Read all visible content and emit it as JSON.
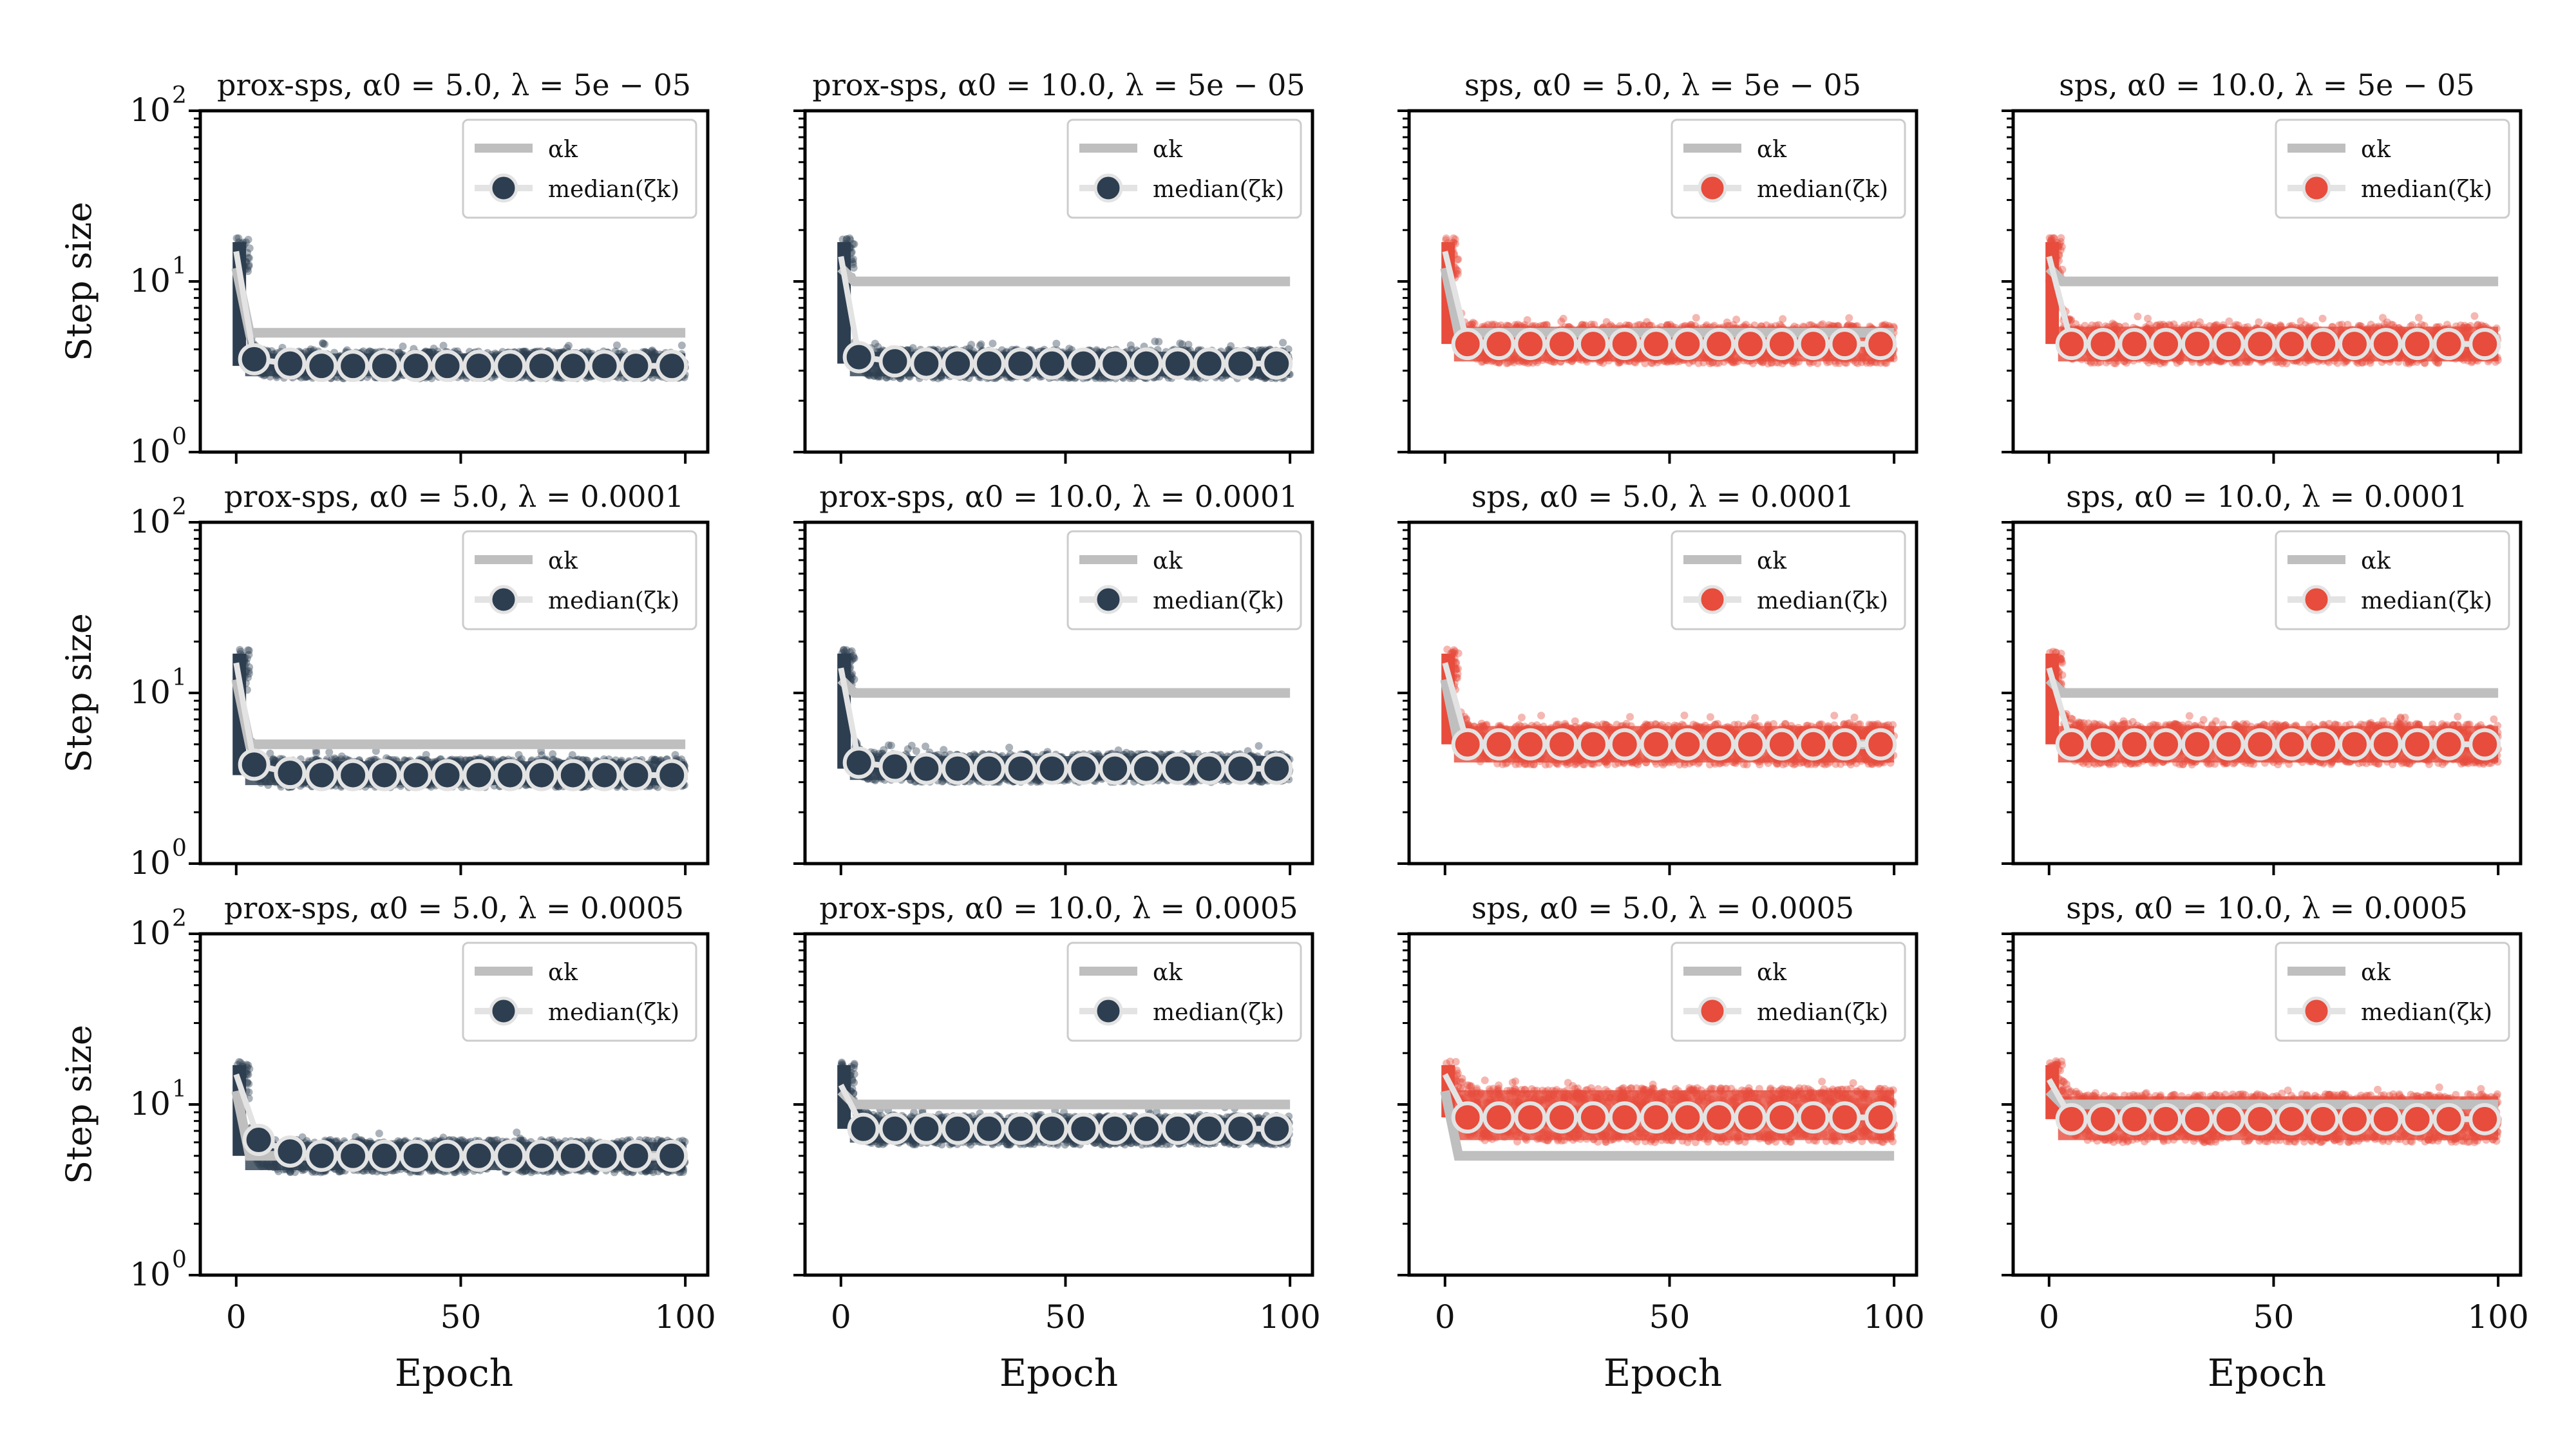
{
  "figure": {
    "ylabel": "Step size",
    "xlabel": "Epoch"
  },
  "colors": {
    "prox_sps": "#2d3e50",
    "sps": "#e74c3c",
    "alpha_line": "#bfbfbf",
    "median_line": "#e3e3e3",
    "frame": "#000000"
  },
  "legend": {
    "alpha_label": "αk",
    "median_label": "median(ζk)"
  },
  "axes": {
    "y_scale": "log",
    "ylim": [
      1,
      100
    ],
    "yticks": [
      {
        "value": 1,
        "base": "10",
        "exp": "0"
      },
      {
        "value": 10,
        "base": "10",
        "exp": "1"
      },
      {
        "value": 100,
        "base": "10",
        "exp": "2"
      }
    ],
    "xlim": [
      -8,
      105
    ],
    "xticks": [
      0,
      50,
      100
    ],
    "legend_position": "upper right"
  },
  "chart_data": [
    {
      "type": "scatter",
      "method": "prox-sps",
      "title": "prox-sps, α0 = 5.0, λ = 5e − 05",
      "alpha0": 5.0,
      "lambda": "5e-05",
      "series": [
        {
          "name": "αk",
          "x": [
            0,
            3,
            100
          ],
          "y": [
            12,
            5,
            5
          ]
        },
        {
          "name": "median(ζk)",
          "x": [
            0,
            4,
            12,
            19,
            26,
            33,
            40,
            47,
            54,
            61,
            68,
            75,
            82,
            89,
            97
          ],
          "y": [
            15,
            3.5,
            3.3,
            3.2,
            3.2,
            3.2,
            3.2,
            3.2,
            3.2,
            3.2,
            3.2,
            3.2,
            3.2,
            3.2,
            3.2
          ],
          "band_low": 2.7,
          "band_high": 3.9
        }
      ]
    },
    {
      "type": "scatter",
      "method": "prox-sps",
      "title": "prox-sps, α0 = 10.0, λ = 5e − 05",
      "alpha0": 10.0,
      "lambda": "5e-05",
      "series": [
        {
          "name": "αk",
          "x": [
            0,
            3,
            100
          ],
          "y": [
            12,
            10,
            10
          ]
        },
        {
          "name": "median(ζk)",
          "x": [
            0,
            4,
            12,
            19,
            26,
            33,
            40,
            47,
            54,
            61,
            68,
            75,
            82,
            89,
            97
          ],
          "y": [
            14,
            3.6,
            3.4,
            3.3,
            3.3,
            3.3,
            3.3,
            3.3,
            3.3,
            3.3,
            3.3,
            3.3,
            3.3,
            3.3,
            3.3
          ],
          "band_low": 2.7,
          "band_high": 4.0
        }
      ]
    },
    {
      "type": "scatter",
      "method": "sps",
      "title": "sps, α0 = 5.0, λ = 5e − 05",
      "alpha0": 5.0,
      "lambda": "5e-05",
      "series": [
        {
          "name": "αk",
          "x": [
            0,
            3,
            100
          ],
          "y": [
            12,
            5,
            5
          ]
        },
        {
          "name": "median(ζk)",
          "x": [
            0,
            5,
            12,
            19,
            26,
            33,
            40,
            47,
            54,
            61,
            68,
            75,
            82,
            89,
            97
          ],
          "y": [
            15,
            4.3,
            4.3,
            4.3,
            4.3,
            4.3,
            4.3,
            4.3,
            4.3,
            4.3,
            4.3,
            4.3,
            4.3,
            4.3,
            4.3
          ],
          "band_low": 3.3,
          "band_high": 5.6
        }
      ]
    },
    {
      "type": "scatter",
      "method": "sps",
      "title": "sps, α0 = 10.0, λ = 5e − 05",
      "alpha0": 10.0,
      "lambda": "5e-05",
      "series": [
        {
          "name": "αk",
          "x": [
            0,
            3,
            100
          ],
          "y": [
            12,
            10,
            10
          ]
        },
        {
          "name": "median(ζk)",
          "x": [
            0,
            5,
            12,
            19,
            26,
            33,
            40,
            47,
            54,
            61,
            68,
            75,
            82,
            89,
            97
          ],
          "y": [
            14,
            4.3,
            4.3,
            4.3,
            4.3,
            4.3,
            4.3,
            4.3,
            4.3,
            4.3,
            4.3,
            4.3,
            4.3,
            4.3,
            4.3
          ],
          "band_low": 3.3,
          "band_high": 5.6
        }
      ]
    },
    {
      "type": "scatter",
      "method": "prox-sps",
      "title": "prox-sps, α0 = 5.0, λ = 0.0001",
      "alpha0": 5.0,
      "lambda": "0.0001",
      "series": [
        {
          "name": "αk",
          "x": [
            0,
            3,
            100
          ],
          "y": [
            12,
            5,
            5
          ]
        },
        {
          "name": "median(ζk)",
          "x": [
            0,
            4,
            12,
            19,
            26,
            33,
            40,
            47,
            54,
            61,
            68,
            75,
            82,
            89,
            97
          ],
          "y": [
            15,
            3.8,
            3.4,
            3.3,
            3.3,
            3.3,
            3.3,
            3.3,
            3.3,
            3.3,
            3.3,
            3.3,
            3.3,
            3.3,
            3.3
          ],
          "band_low": 2.8,
          "band_high": 4.1
        }
      ]
    },
    {
      "type": "scatter",
      "method": "prox-sps",
      "title": "prox-sps, α0 = 10.0, λ = 0.0001",
      "alpha0": 10.0,
      "lambda": "0.0001",
      "series": [
        {
          "name": "αk",
          "x": [
            0,
            3,
            100
          ],
          "y": [
            12,
            10,
            10
          ]
        },
        {
          "name": "median(ζk)",
          "x": [
            0,
            4,
            12,
            19,
            26,
            33,
            40,
            47,
            54,
            61,
            68,
            75,
            82,
            89,
            97
          ],
          "y": [
            14,
            3.9,
            3.7,
            3.6,
            3.6,
            3.6,
            3.6,
            3.6,
            3.6,
            3.6,
            3.6,
            3.6,
            3.6,
            3.6,
            3.6
          ],
          "band_low": 3.0,
          "band_high": 4.4
        }
      ]
    },
    {
      "type": "scatter",
      "method": "sps",
      "title": "sps, α0 = 5.0, λ = 0.0001",
      "alpha0": 5.0,
      "lambda": "0.0001",
      "series": [
        {
          "name": "αk",
          "x": [
            0,
            3,
            100
          ],
          "y": [
            12,
            5,
            5
          ]
        },
        {
          "name": "median(ζk)",
          "x": [
            0,
            5,
            12,
            19,
            26,
            33,
            40,
            47,
            54,
            61,
            68,
            75,
            82,
            89,
            97
          ],
          "y": [
            15,
            5.0,
            5.0,
            5.0,
            5.0,
            5.0,
            5.0,
            5.0,
            5.0,
            5.0,
            5.0,
            5.0,
            5.0,
            5.0,
            5.0
          ],
          "band_low": 3.8,
          "band_high": 6.6
        }
      ]
    },
    {
      "type": "scatter",
      "method": "sps",
      "title": "sps, α0 = 10.0, λ = 0.0001",
      "alpha0": 10.0,
      "lambda": "0.0001",
      "series": [
        {
          "name": "αk",
          "x": [
            0,
            3,
            100
          ],
          "y": [
            12,
            10,
            10
          ]
        },
        {
          "name": "median(ζk)",
          "x": [
            0,
            5,
            12,
            19,
            26,
            33,
            40,
            47,
            54,
            61,
            68,
            75,
            82,
            89,
            97
          ],
          "y": [
            14,
            5.0,
            5.0,
            5.0,
            5.0,
            5.0,
            5.0,
            5.0,
            5.0,
            5.0,
            5.0,
            5.0,
            5.0,
            5.0,
            5.0
          ],
          "band_low": 3.8,
          "band_high": 6.6
        }
      ]
    },
    {
      "type": "scatter",
      "method": "prox-sps",
      "title": "prox-sps, α0 = 5.0, λ = 0.0005",
      "alpha0": 5.0,
      "lambda": "0.0005",
      "series": [
        {
          "name": "αk",
          "x": [
            0,
            3,
            100
          ],
          "y": [
            12,
            5,
            5
          ]
        },
        {
          "name": "median(ζk)",
          "x": [
            0,
            5,
            12,
            19,
            26,
            33,
            40,
            47,
            54,
            61,
            68,
            75,
            82,
            89,
            97
          ],
          "y": [
            15,
            6.2,
            5.3,
            5.0,
            5.0,
            5.0,
            5.0,
            5.0,
            5.0,
            5.0,
            5.0,
            5.0,
            5.0,
            5.0,
            5.0
          ],
          "band_low": 4.0,
          "band_high": 6.2
        }
      ]
    },
    {
      "type": "scatter",
      "method": "prox-sps",
      "title": "prox-sps, α0 = 10.0, λ = 0.0005",
      "alpha0": 10.0,
      "lambda": "0.0005",
      "series": [
        {
          "name": "αk",
          "x": [
            0,
            3,
            100
          ],
          "y": [
            12,
            10,
            10
          ]
        },
        {
          "name": "median(ζk)",
          "x": [
            0,
            5,
            12,
            19,
            26,
            33,
            40,
            47,
            54,
            61,
            68,
            75,
            82,
            89,
            97
          ],
          "y": [
            13,
            7.2,
            7.2,
            7.2,
            7.2,
            7.2,
            7.2,
            7.2,
            7.2,
            7.2,
            7.2,
            7.2,
            7.2,
            7.2,
            7.2
          ],
          "band_low": 5.8,
          "band_high": 8.6
        }
      ]
    },
    {
      "type": "scatter",
      "method": "sps",
      "title": "sps, α0 = 5.0, λ = 0.0005",
      "alpha0": 5.0,
      "lambda": "0.0005",
      "series": [
        {
          "name": "αk",
          "x": [
            0,
            3,
            100
          ],
          "y": [
            12,
            5,
            5
          ]
        },
        {
          "name": "median(ζk)",
          "x": [
            0,
            5,
            12,
            19,
            26,
            33,
            40,
            47,
            54,
            61,
            68,
            75,
            82,
            89,
            97
          ],
          "y": [
            15,
            8.4,
            8.4,
            8.4,
            8.4,
            8.4,
            8.4,
            8.4,
            8.4,
            8.4,
            8.4,
            8.4,
            8.4,
            8.4,
            8.4
          ],
          "band_low": 6.0,
          "band_high": 12.5
        }
      ]
    },
    {
      "type": "scatter",
      "method": "sps",
      "title": "sps, α0 = 10.0, λ = 0.0005",
      "alpha0": 10.0,
      "lambda": "0.0005",
      "series": [
        {
          "name": "αk",
          "x": [
            0,
            3,
            100
          ],
          "y": [
            12,
            10,
            10
          ]
        },
        {
          "name": "median(ζk)",
          "x": [
            0,
            5,
            12,
            19,
            26,
            33,
            40,
            47,
            54,
            61,
            68,
            75,
            82,
            89,
            97
          ],
          "y": [
            14,
            8.2,
            8.2,
            8.2,
            8.2,
            8.2,
            8.2,
            8.2,
            8.2,
            8.2,
            8.2,
            8.2,
            8.2,
            8.2,
            8.2
          ],
          "band_low": 6.0,
          "band_high": 11.5
        }
      ]
    }
  ]
}
